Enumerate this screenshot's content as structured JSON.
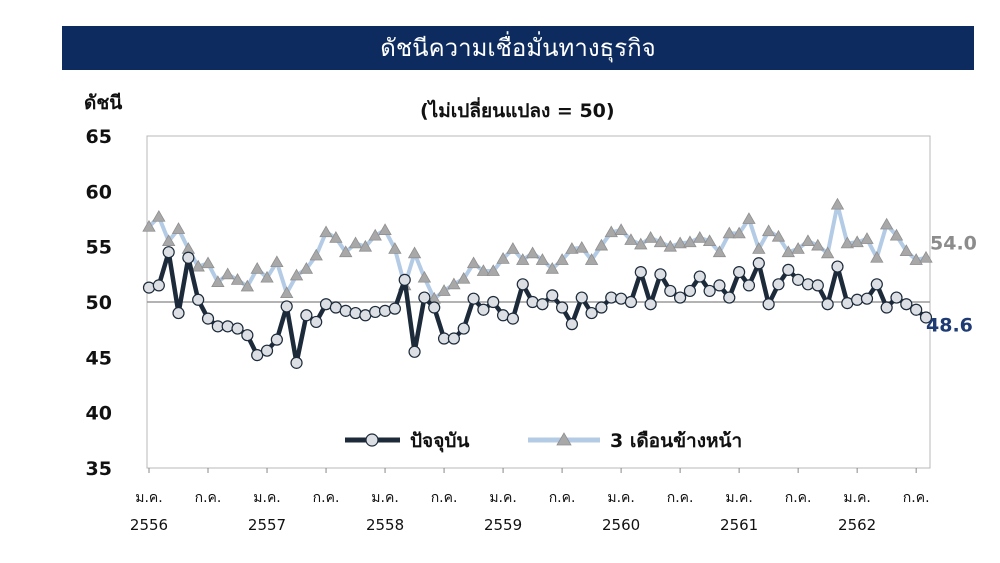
{
  "chart_data": {
    "type": "line",
    "title": "ดัชนีความเชื่อมั่นทางธุรกิจ",
    "subtitle": "(ไม่เปลี่ยนแปลง = 50)",
    "ylabel": "ดัชนี",
    "ylim": [
      35,
      65
    ],
    "yticks": [
      35,
      40,
      45,
      50,
      55,
      60,
      65
    ],
    "reference_line": 50,
    "grid": false,
    "legend_position": "bottom-center",
    "x_tick_labels": [
      {
        "month": "ม.ค.",
        "year": "2556"
      },
      {
        "month": "ก.ค.",
        "year": ""
      },
      {
        "month": "ม.ค.",
        "year": "2557"
      },
      {
        "month": "ก.ค.",
        "year": ""
      },
      {
        "month": "ม.ค.",
        "year": "2558"
      },
      {
        "month": "ก.ค.",
        "year": ""
      },
      {
        "month": "ม.ค.",
        "year": "2559"
      },
      {
        "month": "ก.ค.",
        "year": ""
      },
      {
        "month": "ม.ค.",
        "year": "2560"
      },
      {
        "month": "ก.ค.",
        "year": ""
      },
      {
        "month": "ม.ค.",
        "year": "2561"
      },
      {
        "month": "ก.ค.",
        "year": ""
      },
      {
        "month": "ม.ค.",
        "year": "2562"
      },
      {
        "month": "ก.ค.",
        "year": ""
      }
    ],
    "series": [
      {
        "name": "ปัจจุบัน",
        "color": "#1c2a3a",
        "marker": "circle",
        "end_label": "48.6",
        "end_label_color": "#1f3b73",
        "values": [
          51.3,
          51.5,
          54.5,
          49.0,
          54.0,
          50.2,
          48.5,
          47.8,
          47.8,
          47.6,
          47.0,
          45.2,
          45.6,
          46.6,
          49.6,
          44.5,
          48.8,
          48.2,
          49.8,
          49.5,
          49.2,
          49.0,
          48.8,
          49.1,
          49.2,
          49.4,
          52.0,
          45.5,
          50.4,
          49.5,
          46.7,
          46.7,
          47.6,
          50.3,
          49.3,
          50.0,
          48.8,
          48.5,
          51.6,
          50.0,
          49.8,
          50.6,
          49.5,
          48.0,
          50.4,
          49.0,
          49.5,
          50.4,
          50.3,
          50.0,
          52.7,
          49.8,
          52.5,
          51.0,
          50.4,
          51.0,
          52.3,
          51.0,
          51.5,
          50.4,
          52.7,
          51.5,
          53.5,
          49.8,
          51.6,
          52.9,
          52.0,
          51.6,
          51.5,
          49.8,
          53.2,
          49.9,
          50.2,
          50.3,
          51.6,
          49.5,
          50.4,
          49.8,
          49.3,
          48.6
        ]
      },
      {
        "name": "3 เดือนข้างหน้า",
        "color": "#b4cbe6",
        "marker": "triangle",
        "end_label": "54.0",
        "end_label_color": "#8c8c8c",
        "values": [
          56.8,
          57.7,
          55.5,
          56.6,
          54.8,
          53.2,
          53.5,
          51.8,
          52.5,
          52.0,
          51.4,
          53.0,
          52.2,
          53.6,
          50.8,
          52.4,
          53.0,
          54.2,
          56.3,
          55.8,
          54.5,
          55.3,
          55.0,
          56.0,
          56.5,
          54.8,
          51.5,
          54.4,
          52.2,
          50.3,
          51.0,
          51.6,
          52.1,
          53.5,
          52.8,
          52.8,
          53.9,
          54.8,
          53.8,
          54.4,
          53.8,
          53.0,
          53.8,
          54.8,
          54.9,
          53.8,
          55.1,
          56.3,
          56.5,
          55.6,
          55.2,
          55.8,
          55.4,
          55.0,
          55.3,
          55.4,
          55.8,
          55.5,
          54.5,
          56.2,
          56.2,
          57.5,
          54.8,
          56.4,
          55.9,
          54.5,
          54.8,
          55.5,
          55.1,
          54.4,
          58.8,
          55.3,
          55.4,
          55.7,
          54.0,
          57.0,
          56.0,
          54.6,
          53.8,
          54.0
        ]
      }
    ]
  }
}
